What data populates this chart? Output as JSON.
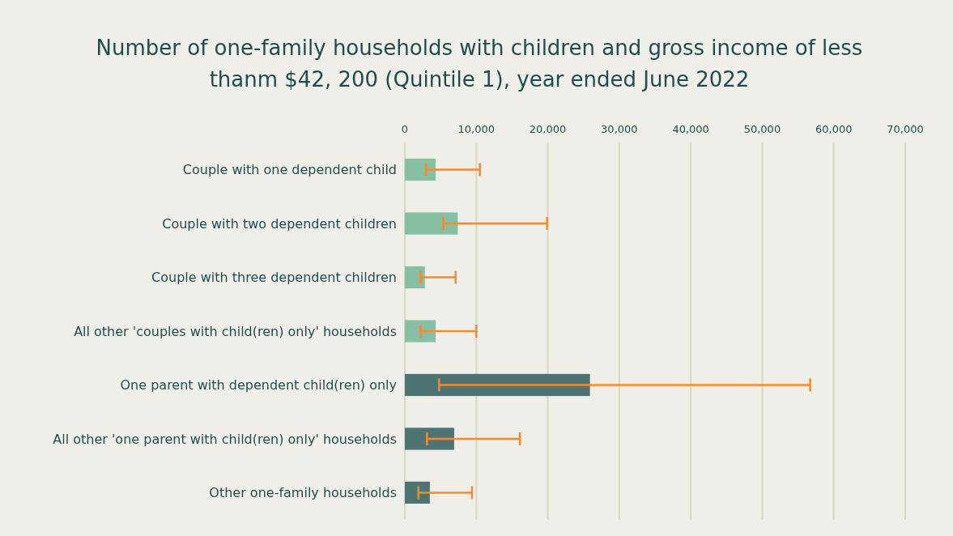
{
  "chart_data": {
    "type": "bar",
    "orientation": "horizontal",
    "title": "Number of one-family households with children and gross income of less thanm $42, 200 (Quintile 1), year ended June 2022",
    "categories": [
      "Couple with one dependent child",
      "Couple with two dependent children",
      "Couple with three dependent children",
      "All other 'couples with child(ren) only' households",
      "One parent with dependent child(ren) only",
      "All other 'one parent with child(ren) only' households",
      "Other one-family households"
    ],
    "values": [
      4300,
      7400,
      2800,
      4300,
      25900,
      6900,
      3500
    ],
    "colors": [
      "#86c0a4",
      "#86c0a4",
      "#86c0a4",
      "#86c0a4",
      "#4e7373",
      "#4e7373",
      "#4e7373"
    ],
    "errors": [
      [
        2950,
        10500
      ],
      [
        5400,
        19900
      ],
      [
        2200,
        7100
      ],
      [
        2200,
        10000
      ],
      [
        4800,
        56700
      ],
      [
        3100,
        16100
      ],
      [
        1900,
        9400
      ]
    ],
    "xlim": [
      0,
      70000
    ],
    "xticks": [
      0,
      {
        "value": 10000,
        "label": "10,000"
      },
      {
        "value": 20000,
        "label": "20,000"
      },
      {
        "value": 30000,
        "label": "30,000"
      },
      {
        "value": 40000,
        "label": "40,000"
      },
      {
        "value": 50000,
        "label": "50,000"
      },
      {
        "value": 60000,
        "label": "60,000"
      },
      {
        "value": 70000,
        "label": "70,000"
      }
    ],
    "grid": "x"
  }
}
